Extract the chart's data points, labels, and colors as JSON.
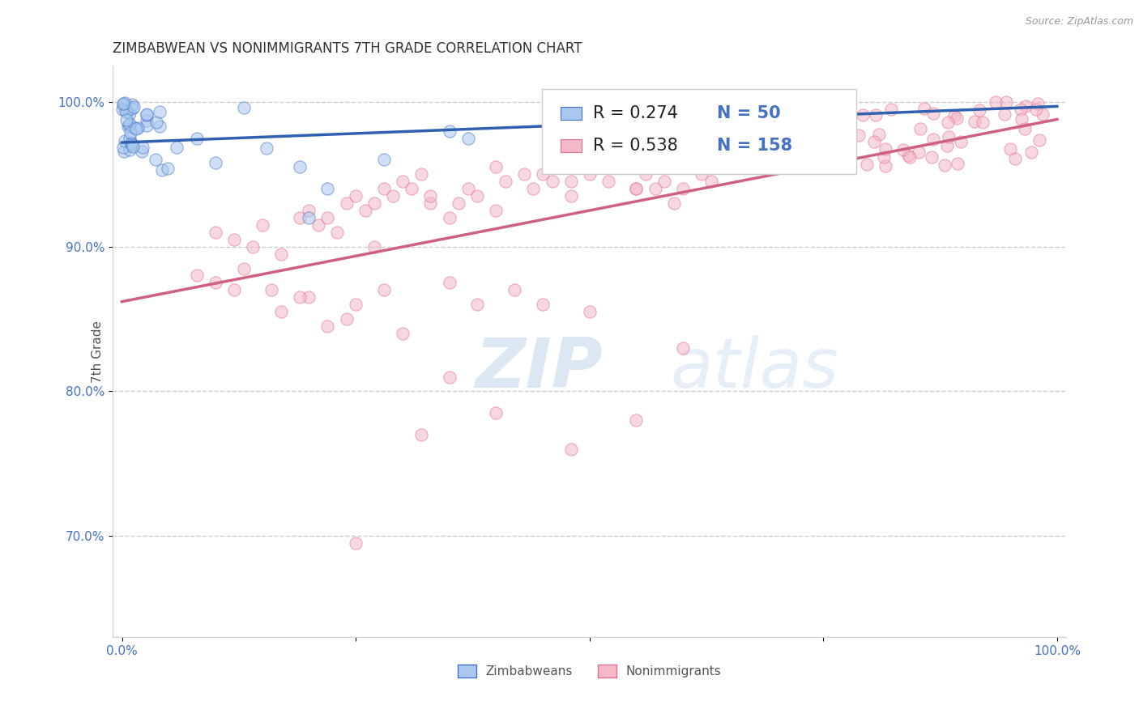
{
  "title": "ZIMBABWEAN VS NONIMMIGRANTS 7TH GRADE CORRELATION CHART",
  "source_text": "Source: ZipAtlas.com",
  "ylabel": "7th Grade",
  "xlim": [
    -0.01,
    1.01
  ],
  "ylim": [
    0.63,
    1.025
  ],
  "x_ticks": [
    0.0,
    0.25,
    0.5,
    0.75,
    1.0
  ],
  "x_tick_labels": [
    "0.0%",
    "",
    "",
    "",
    "100.0%"
  ],
  "y_ticks": [
    0.7,
    0.8,
    0.9,
    1.0
  ],
  "y_tick_labels": [
    "70.0%",
    "80.0%",
    "90.0%",
    "100.0%"
  ],
  "blue_fill": "#A8C8F0",
  "blue_edge": "#4472C4",
  "pink_fill": "#F4B8C8",
  "pink_edge": "#E07090",
  "blue_line_color": "#3060B0",
  "pink_line_color": "#D06080",
  "R_blue": 0.274,
  "N_blue": 50,
  "R_pink": 0.538,
  "N_pink": 158,
  "blue_trend_x": [
    0.0,
    1.0
  ],
  "blue_trend_y": [
    0.972,
    0.997
  ],
  "pink_trend_x": [
    0.0,
    1.0
  ],
  "pink_trend_y": [
    0.862,
    0.988
  ],
  "dot_size": 120,
  "dot_alpha": 0.55,
  "grid_color": "#CCCCCC",
  "grid_style": "--",
  "axis_label_color": "#4472C4",
  "title_color": "#333333",
  "watermark_color": "#D8E8F0",
  "legend_fontsize": 15
}
